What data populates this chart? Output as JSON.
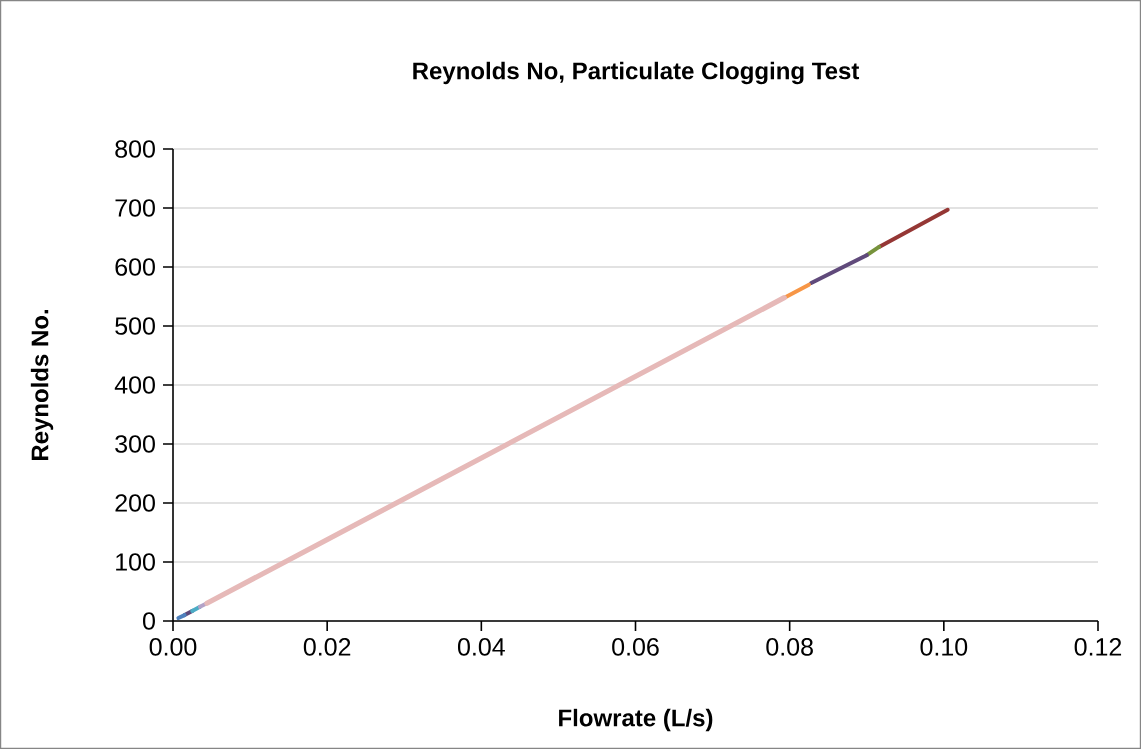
{
  "chart_data": {
    "type": "line",
    "title": "Reynolds No, Particulate Clogging Test",
    "xlabel": "Flowrate (L/s)",
    "ylabel": "Reynolds No.",
    "xlim": [
      0,
      0.12
    ],
    "ylim": [
      0,
      800
    ],
    "xticks": [
      {
        "value": 0,
        "label": "0.00"
      },
      {
        "value": 0.02,
        "label": "0.02"
      },
      {
        "value": 0.04,
        "label": "0.04"
      },
      {
        "value": 0.06,
        "label": "0.06"
      },
      {
        "value": 0.08,
        "label": "0.08"
      },
      {
        "value": 0.1,
        "label": "0.10"
      },
      {
        "value": 0.12,
        "label": "0.12"
      }
    ],
    "yticks": [
      0,
      100,
      200,
      300,
      400,
      500,
      600,
      700,
      800
    ],
    "grid": "y",
    "marker": "none",
    "line_style": "solid",
    "series": [
      {
        "color": "#953735",
        "x": [
          0.0916,
          0.1005
        ],
        "values": [
          634,
          697
        ]
      },
      {
        "color": "#77933c",
        "x": [
          0.09,
          0.0916
        ],
        "values": [
          620,
          634
        ]
      },
      {
        "color": "#604a7b",
        "x": [
          0.0015,
          0.0025,
          0.04,
          0.0828,
          0.09
        ],
        "values": [
          10,
          17,
          null,
          573,
          620
        ]
      },
      {
        "color": "#4f81bd",
        "x": [
          0.0007,
          0.0015
        ],
        "values": [
          5,
          10
        ]
      },
      {
        "color": "#f79646",
        "x": [
          0.0795,
          0.0825
        ],
        "values": [
          549,
          570
        ]
      },
      {
        "color": "#4bacc6",
        "x": [
          0.0025,
          0.0035
        ],
        "values": [
          17,
          24
        ]
      },
      {
        "color": "#b3a2c7",
        "x": [
          0.0035,
          0.0044
        ],
        "values": [
          24,
          30
        ]
      },
      {
        "color": "#e6b9b8",
        "x": [
          0.0044,
          0.0793
        ],
        "values": [
          30,
          548
        ]
      }
    ]
  }
}
